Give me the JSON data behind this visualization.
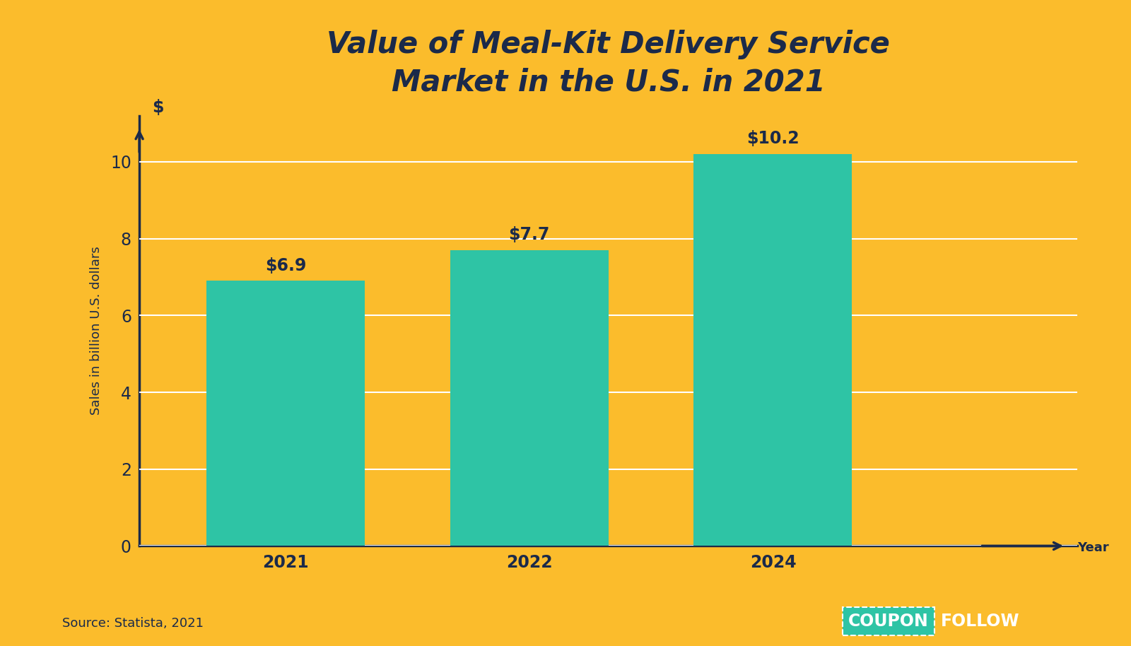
{
  "title_line1": "Value of Meal-Kit Delivery Service",
  "title_line2": "Market in the U.S. in 2021",
  "categories": [
    "2021",
    "2022",
    "2024"
  ],
  "values": [
    6.9,
    7.7,
    10.2
  ],
  "bar_color": "#2EC4A5",
  "background_color": "#FBBC2C",
  "text_color": "#1B2A4A",
  "ylabel": "Sales in billion U.S. dollars",
  "xlabel_arrow": "Year",
  "ylabel_arrow": "$",
  "ylim": [
    0,
    11.2
  ],
  "yticks": [
    0,
    2,
    4,
    6,
    8,
    10
  ],
  "bar_labels": [
    "$6.9",
    "$7.7",
    "$10.2"
  ],
  "source_text": "Source: Statista, 2021",
  "coupon_text": "COUPON",
  "follow_text": "FOLLOW",
  "coupon_bg": "#2EC4A5",
  "coupon_text_color": "#FFFFFF",
  "follow_text_color": "#FFFFFF",
  "title_fontsize": 30,
  "axis_label_fontsize": 13,
  "tick_fontsize": 17,
  "bar_label_fontsize": 17,
  "source_fontsize": 13,
  "logo_fontsize": 17,
  "grid_color": "#FFFFFF",
  "spine_color": "#1B2A4A",
  "bar_positions": [
    1,
    3,
    5
  ],
  "bar_width": 1.3
}
